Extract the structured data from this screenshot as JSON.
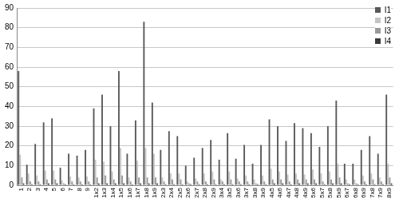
{
  "chart_data": {
    "type": "bar",
    "categories": [
      "1",
      "2",
      "3",
      "4",
      "5",
      "6",
      "7",
      "8",
      "9",
      "1x2",
      "1x3",
      "1x4",
      "1x5",
      "1x6",
      "1x7",
      "1x8",
      "1x9",
      "2x3",
      "2x4",
      "2x5",
      "2x6",
      "2x7",
      "2x8",
      "2x9",
      "3x4",
      "3x5",
      "3x6",
      "3x7",
      "3x8",
      "3x9",
      "4x5",
      "4x6",
      "4x7",
      "4x8",
      "4x9",
      "5x6",
      "5x7",
      "5x8",
      "5x9",
      "6x7",
      "6x8",
      "6x9",
      "7x8",
      "7x9",
      "8x9"
    ],
    "series": [
      {
        "name": "I1",
        "color": "#595959",
        "values": [
          58,
          10.5,
          21,
          32,
          34,
          9,
          16,
          15,
          18,
          39,
          46,
          30,
          58,
          16,
          33,
          83,
          42,
          18,
          27.5,
          25,
          10,
          14,
          19,
          23,
          13,
          26.5,
          13.5,
          20.5,
          11,
          20.5,
          33.5,
          30,
          22.5,
          31.5,
          29,
          26.5,
          19.5,
          30,
          43,
          11,
          11,
          18,
          25,
          16,
          46
        ]
      },
      {
        "name": "I2",
        "color": "#c4c4c4",
        "values": [
          15.5,
          6,
          5,
          7.5,
          7.5,
          2.5,
          4.5,
          4,
          4.5,
          13,
          12,
          7,
          19,
          4,
          12.5,
          19,
          16,
          4,
          6,
          6,
          2,
          3.5,
          6,
          7,
          3,
          7,
          3.5,
          5,
          3,
          5,
          8.5,
          7,
          5.5,
          6,
          5.5,
          8,
          6,
          7,
          11,
          3,
          3,
          5,
          6,
          4,
          11
        ]
      },
      {
        "name": "I3",
        "color": "#999999",
        "values": [
          4,
          2,
          2,
          3,
          3,
          1,
          2,
          2,
          2,
          4,
          5,
          3,
          5,
          2,
          4,
          4,
          4,
          2,
          3,
          3,
          1,
          2,
          2,
          3,
          2,
          3,
          2,
          2,
          1,
          2,
          3,
          3,
          2,
          3,
          3,
          3,
          2,
          3,
          4,
          1,
          1,
          2,
          3,
          2,
          4
        ]
      },
      {
        "name": "I4",
        "color": "#3a3a3a",
        "values": [
          1,
          0.5,
          0.5,
          1,
          1,
          0.5,
          0.5,
          0.5,
          0.5,
          1,
          1,
          1,
          1,
          0.5,
          1,
          1,
          1,
          0.5,
          0.5,
          0.5,
          0.5,
          0.5,
          0.5,
          0.5,
          0.5,
          0.5,
          0.5,
          0.5,
          0.5,
          0.5,
          1,
          1,
          0.5,
          1,
          1,
          1,
          0.5,
          1,
          1,
          0.5,
          0.5,
          0.5,
          0.5,
          0.5,
          1
        ]
      }
    ],
    "ylim": [
      0,
      90
    ],
    "yticks": [
      0,
      10,
      20,
      30,
      40,
      50,
      60,
      70,
      80,
      90
    ],
    "grid": true,
    "legend": "upper right"
  }
}
